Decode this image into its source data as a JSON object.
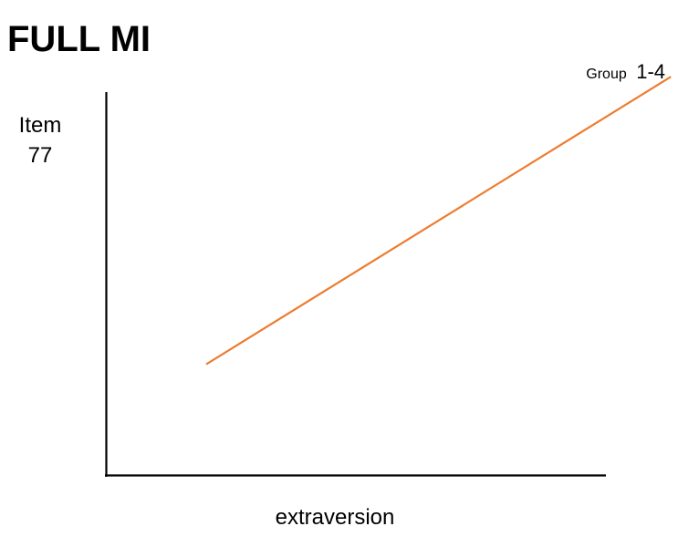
{
  "chart_data": {
    "type": "line",
    "title": "FULL MI",
    "xlabel": "extraversion",
    "ylabel_lines": [
      "Item",
      "77"
    ],
    "grid": false,
    "legend_position": "top-right",
    "series": [
      {
        "name_prefix": "Group",
        "name_suffix": "1-4",
        "color": "#ED7D31",
        "points": [
          {
            "x": 0.2,
            "y": 0.29
          },
          {
            "x": 1.13,
            "y": 1.04
          }
        ]
      }
    ],
    "xlim": [
      0,
      1
    ],
    "ylim": [
      0,
      1
    ]
  }
}
